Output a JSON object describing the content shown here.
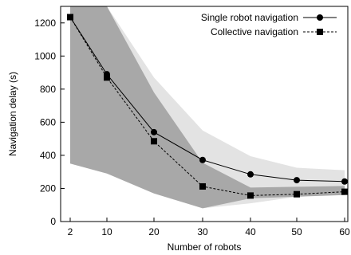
{
  "chart_data": {
    "type": "line",
    "xlabel": "Number of robots",
    "ylabel": "Navigation delay (s)",
    "x": [
      2,
      10,
      20,
      30,
      40,
      50,
      60
    ],
    "x_ticks": [
      "2",
      "10",
      "20",
      "30",
      "40",
      "50",
      "60"
    ],
    "y_ticks": [
      "0",
      "200",
      "400",
      "600",
      "800",
      "1000",
      "1200"
    ],
    "ylim": [
      0,
      1300
    ],
    "grid": false,
    "legend_position": "top-right",
    "series": [
      {
        "name": "Single robot navigation",
        "values": [
          1235,
          890,
          540,
          372,
          285,
          250,
          242
        ],
        "band_upper": [
          1300,
          1300,
          870,
          550,
          395,
          325,
          310
        ],
        "band_lower": [
          350,
          290,
          170,
          80,
          110,
          150,
          170
        ],
        "line_style": "solid",
        "marker": "circle",
        "band_color": "#e3e3e3"
      },
      {
        "name": "Collective navigation",
        "values": [
          1235,
          870,
          485,
          212,
          157,
          165,
          180
        ],
        "band_upper": [
          1300,
          1300,
          780,
          355,
          205,
          210,
          215
        ],
        "band_lower": [
          350,
          290,
          170,
          80,
          140,
          150,
          160
        ],
        "line_style": "dashed",
        "marker": "square",
        "band_color": "#a8a8a8"
      }
    ]
  }
}
